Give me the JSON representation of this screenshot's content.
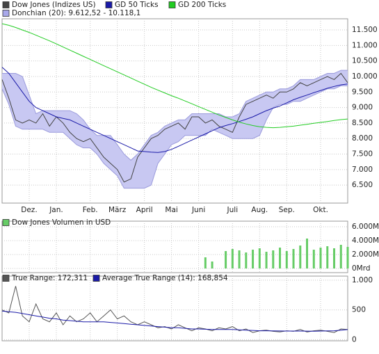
{
  "chart_data": [
    {
      "type": "line",
      "categories": [
        null,
        null,
        null,
        null,
        "Dez.",
        null,
        null,
        null,
        "Jan.",
        null,
        null,
        null,
        null,
        "Feb.",
        null,
        null,
        null,
        "März",
        null,
        null,
        null,
        "April",
        null,
        null,
        null,
        "Mai",
        null,
        null,
        null,
        "Juni",
        null,
        null,
        null,
        null,
        "Juli",
        null,
        null,
        null,
        "Aug.",
        null,
        null,
        null,
        "Sep.",
        null,
        null,
        null,
        null,
        "Okt.",
        null,
        null,
        null,
        null
      ],
      "ylim": [
        5920,
        11860
      ],
      "yticks": [
        {
          "value": 6500,
          "label": "6.500"
        },
        {
          "value": 7000,
          "label": "7.000"
        },
        {
          "value": 7500,
          "label": "7.500"
        },
        {
          "value": 8000,
          "label": "8.000"
        },
        {
          "value": 8500,
          "label": "8.500"
        },
        {
          "value": 9000,
          "label": "9.000"
        },
        {
          "value": 9500,
          "label": "9.500"
        },
        {
          "value": 10000,
          "label": "10.000"
        },
        {
          "value": 10500,
          "label": "10.500"
        },
        {
          "value": 11000,
          "label": "11.000"
        },
        {
          "value": 11500,
          "label": "11.500"
        }
      ],
      "grid": true,
      "series": [
        {
          "name": "Dow Jones (Indizes US)",
          "color": "#444444",
          "values": [
            9900,
            9300,
            8600,
            8500,
            8600,
            8500,
            8800,
            8400,
            8700,
            8500,
            8200,
            8000,
            7900,
            8000,
            7700,
            7400,
            7200,
            7000,
            6600,
            6700,
            7400,
            7700,
            8000,
            8100,
            8300,
            8400,
            8500,
            8300,
            8700,
            8700,
            8500,
            8600,
            8400,
            8300,
            8200,
            8700,
            9100,
            9200,
            9300,
            9400,
            9300,
            9500,
            9500,
            9600,
            9800,
            9700,
            9800,
            9900,
            10000,
            9900,
            10100,
            9800
          ]
        },
        {
          "name": "GD 50 Ticks",
          "color": "#1a1aa8",
          "values": [
            10300,
            10100,
            9800,
            9500,
            9200,
            9000,
            8900,
            8800,
            8700,
            8650,
            8600,
            8500,
            8400,
            8300,
            8200,
            8100,
            8000,
            7900,
            7800,
            7700,
            7600,
            7580,
            7560,
            7550,
            7580,
            7650,
            7750,
            7850,
            7950,
            8050,
            8150,
            8250,
            8350,
            8420,
            8480,
            8550,
            8620,
            8700,
            8800,
            8900,
            8980,
            9050,
            9150,
            9250,
            9330,
            9400,
            9480,
            9550,
            9620,
            9680,
            9730,
            9760
          ]
        },
        {
          "name": "GD 200 Ticks",
          "color": "#22cc22",
          "values": [
            11700,
            11650,
            11580,
            11500,
            11420,
            11330,
            11240,
            11150,
            11050,
            10950,
            10850,
            10750,
            10650,
            10550,
            10450,
            10350,
            10250,
            10150,
            10050,
            9950,
            9850,
            9750,
            9650,
            9560,
            9470,
            9380,
            9300,
            9210,
            9120,
            9030,
            8940,
            8850,
            8760,
            8680,
            8600,
            8530,
            8470,
            8420,
            8380,
            8360,
            8350,
            8360,
            8380,
            8400,
            8430,
            8460,
            8490,
            8520,
            8550,
            8580,
            8610,
            8630
          ]
        },
        {
          "name": "Donchian (20): 9.612,52 - 10.118,1",
          "color": "#c8c8f2",
          "style": "band",
          "values": [
            10100,
            10100,
            10100,
            10000,
            9400,
            8800,
            8900,
            8900,
            8900,
            8900,
            8900,
            8800,
            8600,
            8300,
            8100,
            8100,
            8100,
            7800,
            7500,
            7300,
            7500,
            7800,
            8100,
            8200,
            8400,
            8500,
            8600,
            8600,
            8800,
            8800,
            8800,
            8800,
            8800,
            8700,
            8700,
            8800,
            9200,
            9300,
            9400,
            9500,
            9500,
            9600,
            9600,
            9700,
            9900,
            9900,
            9900,
            10000,
            10100,
            10100,
            10200,
            10200
          ],
          "lower": [
            9600,
            9100,
            8400,
            8300,
            8300,
            8300,
            8300,
            8200,
            8200,
            8200,
            8000,
            7800,
            7700,
            7700,
            7500,
            7200,
            7000,
            6800,
            6400,
            6400,
            6400,
            6400,
            6500,
            7200,
            7500,
            7800,
            7900,
            8100,
            8100,
            8100,
            8100,
            8300,
            8200,
            8100,
            8000,
            8000,
            8000,
            8000,
            8100,
            8600,
            9000,
            9100,
            9100,
            9200,
            9200,
            9300,
            9400,
            9500,
            9600,
            9600,
            9700,
            9700
          ]
        }
      ]
    },
    {
      "type": "bar",
      "ylim": [
        -600,
        6800
      ],
      "yticks": [
        {
          "value": 0,
          "label": "0Mrd"
        },
        {
          "value": 2000,
          "label": "2.000Mrd"
        },
        {
          "value": 4000,
          "label": "4.000Mrd"
        },
        {
          "value": 6000,
          "label": "6.000Mrd"
        }
      ],
      "grid": true,
      "series": [
        {
          "name": "Dow Jones Volumen in USD",
          "color": "#66cc66",
          "values": [
            null,
            null,
            null,
            null,
            null,
            null,
            null,
            null,
            null,
            null,
            null,
            null,
            null,
            null,
            null,
            null,
            null,
            null,
            null,
            null,
            null,
            null,
            null,
            null,
            null,
            null,
            null,
            null,
            null,
            null,
            1600,
            1000,
            null,
            2500,
            2800,
            2600,
            2300,
            2700,
            2900,
            2400,
            2600,
            3000,
            2500,
            2800,
            3300,
            4300,
            2700,
            3000,
            3200,
            2900,
            3400,
            3100
          ]
        }
      ]
    },
    {
      "type": "line",
      "ylim": [
        -19,
        1069
      ],
      "yticks": [
        0,
        500,
        {
          "value": 1000,
          "label": "1.000"
        }
      ],
      "grid": true,
      "series": [
        {
          "name": "True Range: 172,311",
          "color": "#555555",
          "values": [
            500,
            450,
            900,
            400,
            300,
            600,
            350,
            300,
            450,
            250,
            400,
            300,
            350,
            450,
            300,
            400,
            500,
            350,
            400,
            300,
            250,
            300,
            250,
            200,
            220,
            180,
            250,
            200,
            150,
            200,
            180,
            150,
            200,
            180,
            220,
            150,
            180,
            120,
            150,
            160,
            140,
            130,
            150,
            140,
            170,
            130,
            150,
            160,
            140,
            120,
            180,
            172
          ]
        },
        {
          "name": "Average True Range (14): 168,854",
          "color": "#1a1aa8",
          "values": [
            480,
            470,
            460,
            440,
            420,
            400,
            380,
            360,
            350,
            330,
            320,
            310,
            300,
            300,
            300,
            300,
            290,
            280,
            270,
            260,
            250,
            240,
            230,
            220,
            210,
            200,
            200,
            190,
            180,
            180,
            175,
            170,
            170,
            170,
            170,
            165,
            160,
            155,
            150,
            150,
            148,
            146,
            145,
            145,
            145,
            144,
            143,
            145,
            148,
            150,
            160,
            169
          ]
        }
      ]
    }
  ]
}
